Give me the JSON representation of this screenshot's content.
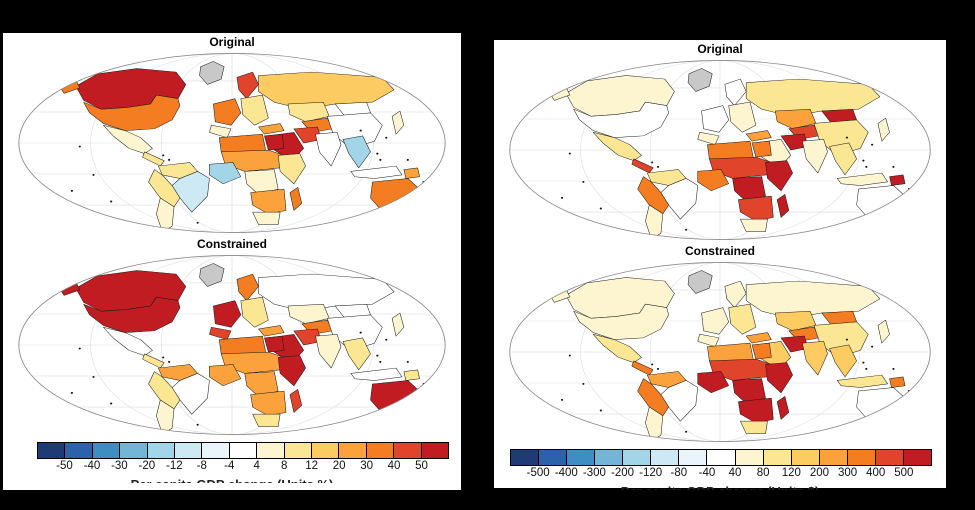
{
  "background": "#000000",
  "na_color": "#c8c8c8",
  "palette": [
    "#1e3b76",
    "#2c62ac",
    "#3e8dc3",
    "#72b5d6",
    "#a3d5e8",
    "#cce9f4",
    "#e9f5fa",
    "#ffffff",
    "#fdf5d0",
    "#fbe793",
    "#fccc63",
    "#fba23c",
    "#f47c21",
    "#e0442a",
    "#c01c22"
  ],
  "chart_data": {
    "type": "heatmap",
    "subtype": "choropleth-world-maps",
    "projection": "elliptical pseudo-cylindrical (Mollweide-style) with graticule",
    "legend_position": "bottom",
    "value_encoding": "country fill = palette bin index 0-14 (dark blue = most negative, dark red = most positive); 'na' = no data (gray)",
    "panels": [
      {
        "units": "%",
        "colorbar_ticks": [
          "-50",
          "-40",
          "-30",
          "-20",
          "-12",
          "-8",
          "-4",
          "4",
          "8",
          "12",
          "20",
          "30",
          "40",
          "50"
        ],
        "caption": "Per capita GDP change (Units %)",
        "caption_note": "caption text mostly clipped at bottom panel edge",
        "maps": [
          {
            "title": "Original",
            "regions": {
              "greenland": "na",
              "canada": 14,
              "alaska": 12,
              "usa": 12,
              "mexico": 8,
              "central_america": 9,
              "northern_sa": 9,
              "brazil": 5,
              "andes": 9,
              "southern_cone": 8,
              "scandinavia": 13,
              "europe_west": 12,
              "iberia": 8,
              "europe_east": 9,
              "russia": 10,
              "kazakh": 9,
              "central_asia": 12,
              "mongolia": 7,
              "china": 7,
              "japan": 8,
              "turkey": 11,
              "middle_east": 14,
              "iran": 13,
              "south_asia": 7,
              "se_asia": 4,
              "indonesia": 7,
              "png": 11,
              "north_africa": 12,
              "egypt": 14,
              "sahel": 11,
              "west_africa": 4,
              "central_africa": 8,
              "east_africa": 9,
              "southern_africa": 11,
              "south_africa": 8,
              "madagascar": 12,
              "australia": 12,
              "new_zealand": 8
            }
          },
          {
            "title": "Constrained",
            "regions": {
              "greenland": "na",
              "canada": 14,
              "alaska": 14,
              "usa": 14,
              "mexico": 7,
              "central_america": 9,
              "northern_sa": 11,
              "brazil": 7,
              "andes": 9,
              "southern_cone": 8,
              "scandinavia": 12,
              "europe_west": 14,
              "iberia": 13,
              "europe_east": 9,
              "russia": 7,
              "kazakh": 8,
              "central_asia": 12,
              "mongolia": 7,
              "china": 7,
              "japan": 8,
              "turkey": 11,
              "middle_east": 14,
              "iran": 13,
              "south_asia": 8,
              "se_asia": 9,
              "indonesia": 7,
              "png": 9,
              "north_africa": 12,
              "egypt": 14,
              "sahel": 11,
              "west_africa": 11,
              "central_africa": 11,
              "east_africa": 14,
              "southern_africa": 11,
              "south_africa": 9,
              "madagascar": 13,
              "australia": 14,
              "new_zealand": 7
            }
          }
        ]
      },
      {
        "units": "$",
        "colorbar_ticks": [
          "-500",
          "-400",
          "-300",
          "-200",
          "-120",
          "-80",
          "-40",
          "40",
          "80",
          "120",
          "200",
          "300",
          "400",
          "500"
        ],
        "caption": "Per capita GDP change (Units $)",
        "caption_note": "caption text mostly clipped at bottom panel edge",
        "maps": [
          {
            "title": "Original",
            "regions": {
              "greenland": "na",
              "canada": 8,
              "alaska": 8,
              "usa": 7,
              "mexico": 9,
              "central_america": 13,
              "northern_sa": 9,
              "brazil": 7,
              "andes": 12,
              "southern_cone": 8,
              "scandinavia": 7,
              "europe_west": 7,
              "iberia": 8,
              "europe_east": 8,
              "russia": 9,
              "kazakh": 11,
              "central_asia": 13,
              "mongolia": 14,
              "china": 9,
              "japan": 8,
              "turkey": 11,
              "middle_east": 8,
              "iran": 14,
              "south_asia": 8,
              "se_asia": 9,
              "indonesia": 8,
              "png": 14,
              "north_africa": 12,
              "egypt": 12,
              "sahel": 13,
              "west_africa": 12,
              "central_africa": 14,
              "east_africa": 14,
              "southern_africa": 13,
              "south_africa": 8,
              "madagascar": 14,
              "australia": 7,
              "new_zealand": 7
            }
          },
          {
            "title": "Constrained",
            "regions": {
              "greenland": "na",
              "canada": 8,
              "alaska": 8,
              "usa": 8,
              "mexico": 9,
              "central_america": 12,
              "northern_sa": 11,
              "brazil": 7,
              "andes": 12,
              "southern_cone": 8,
              "scandinavia": 8,
              "europe_west": 8,
              "iberia": 8,
              "europe_east": 9,
              "russia": 8,
              "kazakh": 10,
              "central_asia": 12,
              "mongolia": 12,
              "china": 9,
              "japan": 8,
              "turkey": 11,
              "middle_east": 10,
              "iran": 14,
              "south_asia": 10,
              "se_asia": 10,
              "indonesia": 9,
              "png": 12,
              "north_africa": 11,
              "egypt": 12,
              "sahel": 13,
              "west_africa": 14,
              "central_africa": 14,
              "east_africa": 14,
              "southern_africa": 14,
              "south_africa": 9,
              "madagascar": 14,
              "australia": 7,
              "new_zealand": 7
            }
          }
        ]
      }
    ]
  }
}
